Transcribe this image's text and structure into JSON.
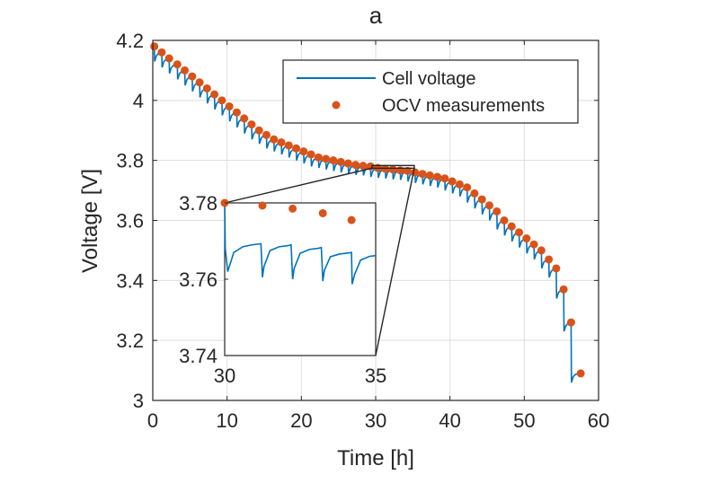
{
  "chart_data": {
    "type": "line",
    "title": "a",
    "xlabel": "Time [h]",
    "ylabel": "Voltage [V]",
    "xlim": [
      0,
      60
    ],
    "ylim": [
      3.0,
      4.2
    ],
    "xticks": [
      0,
      10,
      20,
      30,
      40,
      50,
      60
    ],
    "xtick_labels": [
      "0",
      "10",
      "20",
      "30",
      "40",
      "50",
      "60"
    ],
    "yticks": [
      3.0,
      3.2,
      3.4,
      3.6,
      3.8,
      4.0,
      4.2
    ],
    "ytick_labels": [
      "3",
      "3.2",
      "3.4",
      "3.6",
      "3.8",
      "4",
      "4.2"
    ],
    "grid": true,
    "legend_position": "top-right",
    "colors": {
      "line": "#0072BD",
      "markers": "#D95319",
      "axes": "#262626",
      "grid": "#dedede"
    },
    "series": [
      {
        "name": "Cell voltage",
        "kind": "line",
        "pulse_drop": 0.03,
        "x": [
          0.2,
          1.2,
          2.2,
          3.3,
          4.3,
          5.3,
          6.3,
          7.3,
          8.3,
          9.3,
          10.3,
          11.3,
          12.3,
          13.3,
          14.3,
          15.3,
          16.3,
          17.3,
          18.3,
          19.3,
          20.3,
          21.3,
          22.3,
          23.3,
          24.3,
          25.3,
          26.3,
          27.3,
          28.3,
          29.3,
          30.3,
          31.3,
          32.3,
          33.3,
          34.3,
          35.3,
          36.3,
          37.3,
          38.3,
          39.3,
          40.3,
          41.3,
          42.3,
          43.3,
          44.3,
          45.3,
          46.3,
          47.3,
          48.3,
          49.3,
          50.3,
          51.3,
          52.3,
          53.3,
          54.3,
          55.3,
          56.3,
          57.6
        ],
        "y": [
          4.18,
          4.16,
          4.14,
          4.12,
          4.1,
          4.08,
          4.06,
          4.04,
          4.02,
          4.0,
          3.98,
          3.96,
          3.94,
          3.92,
          3.9,
          3.885,
          3.87,
          3.86,
          3.85,
          3.84,
          3.83,
          3.82,
          3.81,
          3.805,
          3.8,
          3.795,
          3.79,
          3.785,
          3.782,
          3.78,
          3.775,
          3.772,
          3.77,
          3.767,
          3.765,
          3.76,
          3.755,
          3.75,
          3.745,
          3.74,
          3.73,
          3.72,
          3.71,
          3.69,
          3.67,
          3.65,
          3.63,
          3.6,
          3.58,
          3.56,
          3.54,
          3.52,
          3.5,
          3.47,
          3.44,
          3.37,
          3.26,
          3.09
        ]
      },
      {
        "name": "OCV measurements",
        "kind": "markers",
        "x": [
          0.2,
          1.2,
          2.2,
          3.3,
          4.3,
          5.3,
          6.3,
          7.3,
          8.3,
          9.3,
          10.3,
          11.3,
          12.3,
          13.3,
          14.3,
          15.3,
          16.3,
          17.3,
          18.3,
          19.3,
          20.3,
          21.3,
          22.3,
          23.3,
          24.3,
          25.3,
          26.3,
          27.3,
          28.3,
          29.3,
          30.3,
          31.3,
          32.3,
          33.3,
          34.3,
          35.3,
          36.3,
          37.3,
          38.3,
          39.3,
          40.3,
          41.3,
          42.3,
          43.3,
          44.3,
          45.3,
          46.3,
          47.3,
          48.3,
          49.3,
          50.3,
          51.3,
          52.3,
          53.3,
          54.3,
          55.3,
          56.3,
          57.6
        ],
        "y": [
          4.18,
          4.16,
          4.14,
          4.12,
          4.1,
          4.08,
          4.06,
          4.04,
          4.02,
          4.0,
          3.98,
          3.96,
          3.94,
          3.92,
          3.9,
          3.885,
          3.87,
          3.86,
          3.85,
          3.84,
          3.83,
          3.82,
          3.81,
          3.805,
          3.8,
          3.795,
          3.79,
          3.785,
          3.782,
          3.78,
          3.775,
          3.772,
          3.77,
          3.767,
          3.765,
          3.76,
          3.755,
          3.75,
          3.745,
          3.74,
          3.73,
          3.72,
          3.71,
          3.69,
          3.67,
          3.65,
          3.63,
          3.6,
          3.58,
          3.56,
          3.54,
          3.52,
          3.5,
          3.47,
          3.44,
          3.37,
          3.26,
          3.09
        ]
      }
    ],
    "inset": {
      "zoom_box": {
        "xlim": [
          29.5,
          35.2
        ],
        "ylim": [
          3.774,
          3.783
        ]
      },
      "xlim": [
        30,
        35
      ],
      "ylim": [
        3.74,
        3.78
      ],
      "xticks": [
        30,
        35
      ],
      "xtick_labels": [
        "30",
        "35"
      ],
      "yticks": [
        3.74,
        3.76,
        3.78
      ],
      "ytick_labels": [
        "3.74",
        "3.76",
        "3.78"
      ],
      "line": {
        "x": [
          30.0,
          30.02,
          30.1,
          30.3,
          30.6,
          30.9,
          31.2,
          31.25,
          31.3,
          31.5,
          31.8,
          32.1,
          32.2,
          32.25,
          32.3,
          32.5,
          32.8,
          33.1,
          33.2,
          33.25,
          33.3,
          33.5,
          33.8,
          34.1,
          34.2,
          34.22,
          34.3,
          34.5,
          34.8,
          35.0
        ],
        "y": [
          3.78,
          3.768,
          3.762,
          3.767,
          3.7685,
          3.769,
          3.7693,
          3.7605,
          3.7633,
          3.7675,
          3.7685,
          3.7688,
          3.769,
          3.76,
          3.7628,
          3.7668,
          3.7678,
          3.7681,
          3.7683,
          3.7595,
          3.7623,
          3.7659,
          3.7666,
          3.7669,
          3.767,
          3.7587,
          3.7612,
          3.765,
          3.766,
          3.7662
        ]
      },
      "markers": {
        "x": [
          30.0,
          31.25,
          32.25,
          33.25,
          34.2
        ],
        "y": [
          3.78,
          3.7793,
          3.7785,
          3.7773,
          3.7755
        ]
      }
    }
  }
}
